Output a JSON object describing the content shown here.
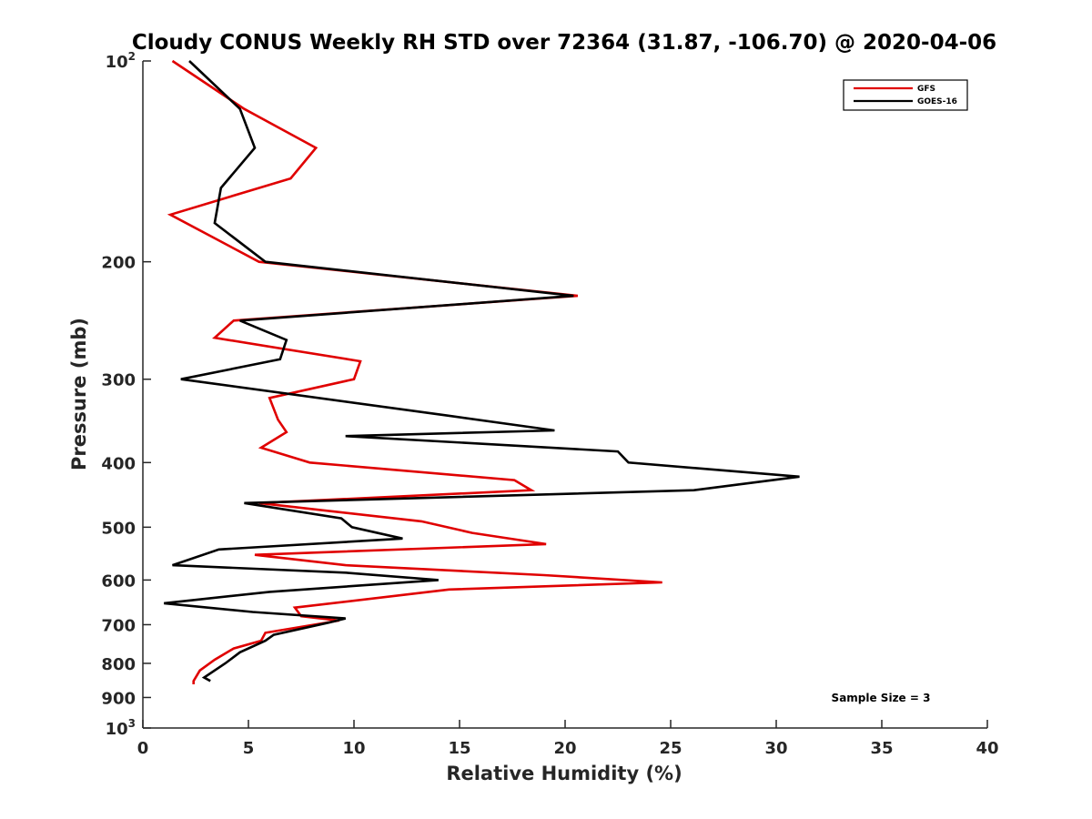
{
  "chart_data": {
    "type": "line",
    "title": "Cloudy CONUS Weekly RH STD over 72364 (31.87, -106.70) @ 2020-04-06",
    "xlabel": "Relative Humidity (%)",
    "ylabel": "Pressure (mb)",
    "xlim": [
      0,
      40
    ],
    "ylim": [
      100,
      1000
    ],
    "y_scale": "log",
    "y_reversed": true,
    "xticks": [
      "0",
      "5",
      "10",
      "15",
      "20",
      "25",
      "30",
      "35",
      "40"
    ],
    "yticks": [
      {
        "value": 100,
        "base": "10",
        "exp": "2"
      },
      {
        "value": 200,
        "base": "200",
        "exp": ""
      },
      {
        "value": 300,
        "base": "300",
        "exp": ""
      },
      {
        "value": 400,
        "base": "400",
        "exp": ""
      },
      {
        "value": 500,
        "base": "500",
        "exp": ""
      },
      {
        "value": 600,
        "base": "600",
        "exp": ""
      },
      {
        "value": 700,
        "base": "700",
        "exp": ""
      },
      {
        "value": 800,
        "base": "800",
        "exp": ""
      },
      {
        "value": 900,
        "base": "900",
        "exp": ""
      },
      {
        "value": 1000,
        "base": "10",
        "exp": "3"
      }
    ],
    "grid": false,
    "legend_position": "top-right",
    "annotation": "Sample Size = 3",
    "series": [
      {
        "name": "GFS",
        "color": "#e00000",
        "points": [
          {
            "p": 100,
            "x": 1.4
          },
          {
            "p": 118,
            "x": 4.8
          },
          {
            "p": 135,
            "x": 8.2
          },
          {
            "p": 150,
            "x": 7.0
          },
          {
            "p": 170,
            "x": 1.3
          },
          {
            "p": 200,
            "x": 5.5
          },
          {
            "p": 225,
            "x": 20.6
          },
          {
            "p": 245,
            "x": 4.3
          },
          {
            "p": 260,
            "x": 3.4
          },
          {
            "p": 282,
            "x": 10.3
          },
          {
            "p": 300,
            "x": 10.0
          },
          {
            "p": 320,
            "x": 6.0
          },
          {
            "p": 345,
            "x": 6.4
          },
          {
            "p": 360,
            "x": 6.8
          },
          {
            "p": 380,
            "x": 5.6
          },
          {
            "p": 400,
            "x": 7.9
          },
          {
            "p": 425,
            "x": 17.6
          },
          {
            "p": 440,
            "x": 18.4
          },
          {
            "p": 460,
            "x": 5.5
          },
          {
            "p": 490,
            "x": 13.2
          },
          {
            "p": 510,
            "x": 15.6
          },
          {
            "p": 530,
            "x": 19.1
          },
          {
            "p": 550,
            "x": 5.3
          },
          {
            "p": 570,
            "x": 9.6
          },
          {
            "p": 590,
            "x": 19.0
          },
          {
            "p": 605,
            "x": 24.6
          },
          {
            "p": 620,
            "x": 14.5
          },
          {
            "p": 660,
            "x": 7.2
          },
          {
            "p": 680,
            "x": 7.5
          },
          {
            "p": 690,
            "x": 9.3
          },
          {
            "p": 720,
            "x": 5.8
          },
          {
            "p": 740,
            "x": 5.6
          },
          {
            "p": 760,
            "x": 4.3
          },
          {
            "p": 790,
            "x": 3.4
          },
          {
            "p": 820,
            "x": 2.7
          },
          {
            "p": 850,
            "x": 2.4
          },
          {
            "p": 860,
            "x": 2.4
          }
        ]
      },
      {
        "name": "GOES-16",
        "color": "#000000",
        "points": [
          {
            "p": 100,
            "x": 2.2
          },
          {
            "p": 118,
            "x": 4.6
          },
          {
            "p": 135,
            "x": 5.3
          },
          {
            "p": 155,
            "x": 3.7
          },
          {
            "p": 175,
            "x": 3.4
          },
          {
            "p": 200,
            "x": 5.8
          },
          {
            "p": 225,
            "x": 20.4
          },
          {
            "p": 245,
            "x": 4.6
          },
          {
            "p": 262,
            "x": 6.8
          },
          {
            "p": 280,
            "x": 6.5
          },
          {
            "p": 300,
            "x": 1.8
          },
          {
            "p": 340,
            "x": 14.4
          },
          {
            "p": 358,
            "x": 19.5
          },
          {
            "p": 365,
            "x": 9.6
          },
          {
            "p": 385,
            "x": 22.5
          },
          {
            "p": 400,
            "x": 23.0
          },
          {
            "p": 420,
            "x": 31.1
          },
          {
            "p": 440,
            "x": 26.1
          },
          {
            "p": 460,
            "x": 4.8
          },
          {
            "p": 485,
            "x": 9.4
          },
          {
            "p": 500,
            "x": 9.9
          },
          {
            "p": 520,
            "x": 12.3
          },
          {
            "p": 540,
            "x": 3.6
          },
          {
            "p": 570,
            "x": 1.4
          },
          {
            "p": 585,
            "x": 9.6
          },
          {
            "p": 600,
            "x": 14.0
          },
          {
            "p": 625,
            "x": 6.0
          },
          {
            "p": 650,
            "x": 1.0
          },
          {
            "p": 670,
            "x": 5.2
          },
          {
            "p": 685,
            "x": 9.6
          },
          {
            "p": 695,
            "x": 8.8
          },
          {
            "p": 725,
            "x": 6.2
          },
          {
            "p": 740,
            "x": 5.8
          },
          {
            "p": 770,
            "x": 4.6
          },
          {
            "p": 800,
            "x": 3.9
          },
          {
            "p": 840,
            "x": 2.9
          },
          {
            "p": 850,
            "x": 3.2
          }
        ]
      }
    ]
  }
}
